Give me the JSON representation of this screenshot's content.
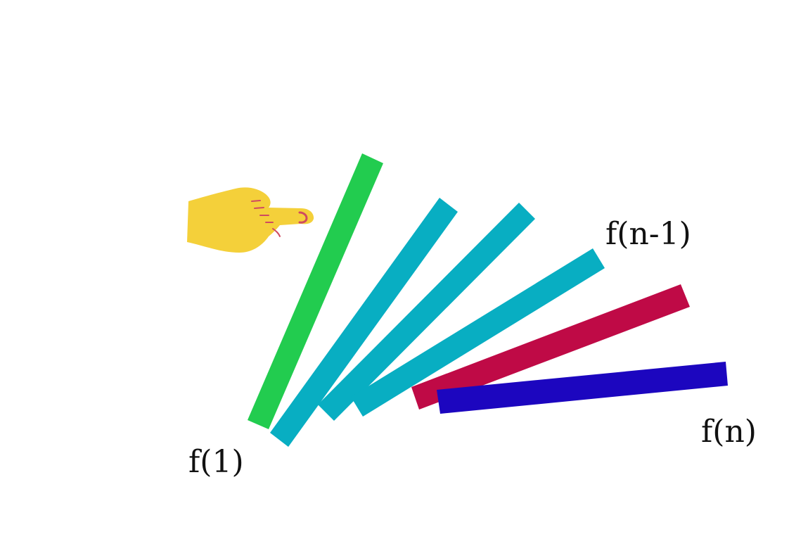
{
  "labels": {
    "first": "f(1)",
    "second_last": "f(n-1)",
    "last": "f(n)"
  },
  "dominoes": [
    {
      "name": "domino-first",
      "color": "#22cc4f"
    },
    {
      "name": "domino-2",
      "color": "#08aec2"
    },
    {
      "name": "domino-3",
      "color": "#08aec2"
    },
    {
      "name": "domino-n-minus-1",
      "color": "#08aec2"
    },
    {
      "name": "domino-tipping",
      "color": "#bf0a46"
    },
    {
      "name": "domino-last",
      "color": "#1c06bf"
    }
  ],
  "hand": {
    "icon": "pointing-hand-icon",
    "color": "#f4d03a",
    "accent": "#cf4a60"
  }
}
